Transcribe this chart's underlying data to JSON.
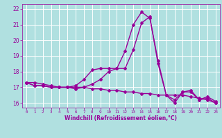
{
  "xlabel": "Windchill (Refroidissement éolien,°C)",
  "ylabel": "",
  "x": [
    0,
    1,
    2,
    3,
    4,
    5,
    6,
    7,
    8,
    9,
    10,
    11,
    12,
    13,
    14,
    15,
    16,
    17,
    18,
    19,
    20,
    21,
    22,
    23
  ],
  "line1_y": [
    17.3,
    17.1,
    17.1,
    17.0,
    17.0,
    17.0,
    17.1,
    17.5,
    18.1,
    18.2,
    18.2,
    18.2,
    18.2,
    19.4,
    21.1,
    21.5,
    18.5,
    16.5,
    16.0,
    16.7,
    16.7,
    16.2,
    16.3,
    16.0
  ],
  "line2_y": [
    17.3,
    17.1,
    17.1,
    17.0,
    17.0,
    17.0,
    17.0,
    17.0,
    16.9,
    16.9,
    16.8,
    16.8,
    16.7,
    16.7,
    16.6,
    16.6,
    16.5,
    16.5,
    16.5,
    16.5,
    16.4,
    16.3,
    16.2,
    16.0
  ],
  "line3_y": [
    17.3,
    17.3,
    17.2,
    17.1,
    17.0,
    17.0,
    16.9,
    17.0,
    17.2,
    17.5,
    18.0,
    18.2,
    19.3,
    21.0,
    21.8,
    21.4,
    18.7,
    16.5,
    16.2,
    16.7,
    16.8,
    16.2,
    16.4,
    16.1
  ],
  "line_color": "#990099",
  "background_color": "#b0e0e0",
  "grid_color": "#ffffff",
  "ylim": [
    15.7,
    22.3
  ],
  "xlim": [
    -0.5,
    23.5
  ],
  "yticks": [
    16,
    17,
    18,
    19,
    20,
    21,
    22
  ],
  "xticks": [
    0,
    1,
    2,
    3,
    4,
    5,
    6,
    7,
    8,
    9,
    10,
    11,
    12,
    13,
    14,
    15,
    16,
    17,
    18,
    19,
    20,
    21,
    22,
    23
  ],
  "tick_color": "#990099",
  "xlabel_color": "#990099",
  "marker": "D",
  "markersize": 2.0,
  "linewidth": 1.0
}
